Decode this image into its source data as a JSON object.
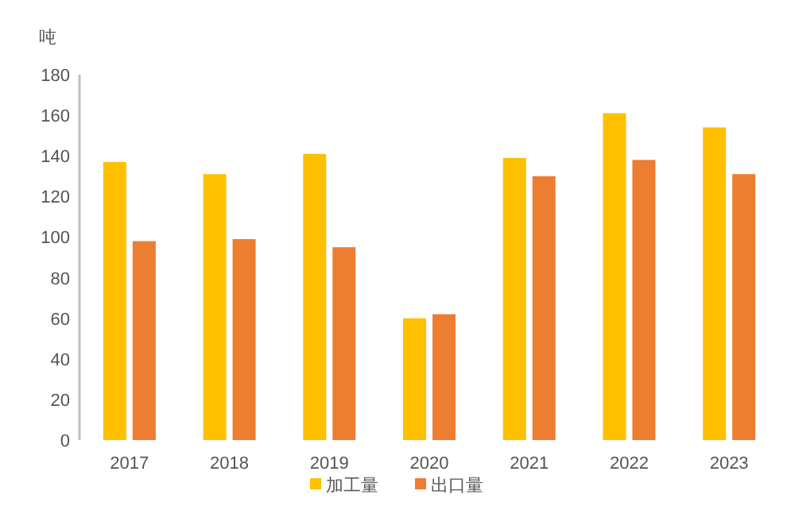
{
  "chart_data": {
    "type": "bar",
    "ylabel": "吨",
    "categories": [
      "2017",
      "2018",
      "2019",
      "2020",
      "2021",
      "2022",
      "2023"
    ],
    "series": [
      {
        "name": "加工量",
        "color": "#ffc000",
        "values": [
          137,
          131,
          141,
          60,
          139,
          161,
          154
        ]
      },
      {
        "name": "出口量",
        "color": "#ed7d31",
        "values": [
          98,
          99,
          95,
          62,
          130,
          138,
          131
        ]
      }
    ],
    "ylim": [
      0,
      180
    ],
    "yticks": [
      0,
      20,
      40,
      60,
      80,
      100,
      120,
      140,
      160,
      180
    ],
    "grid": false,
    "legend": "bottom"
  }
}
